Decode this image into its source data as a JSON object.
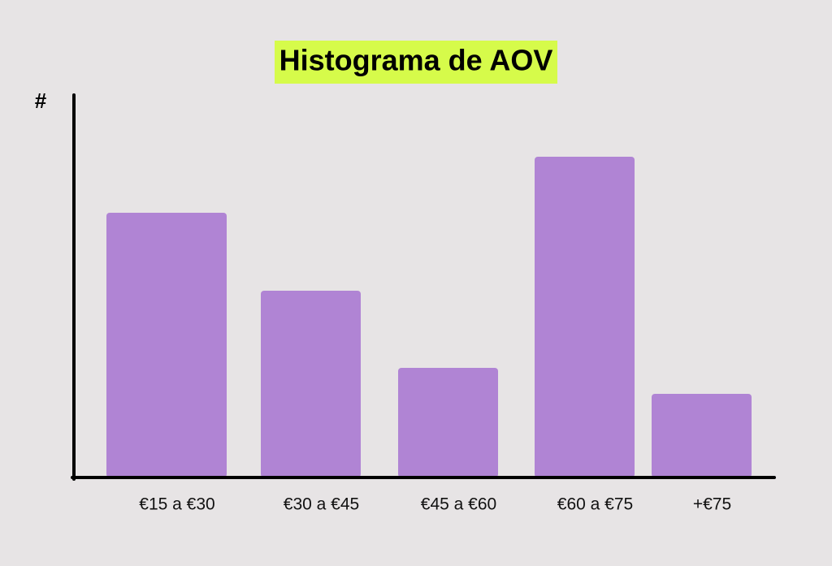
{
  "chart_data": {
    "type": "bar",
    "title": "Histograma de AOV",
    "y_label": "#",
    "categories": [
      "€15 a €30",
      "€30 a €45",
      "€45 a €60",
      "€60 a €75",
      "+€75"
    ],
    "values": [
      326,
      230,
      135,
      395,
      103
    ],
    "color": "#b084d4",
    "ylim": [
      0,
      470
    ],
    "grid": false
  }
}
